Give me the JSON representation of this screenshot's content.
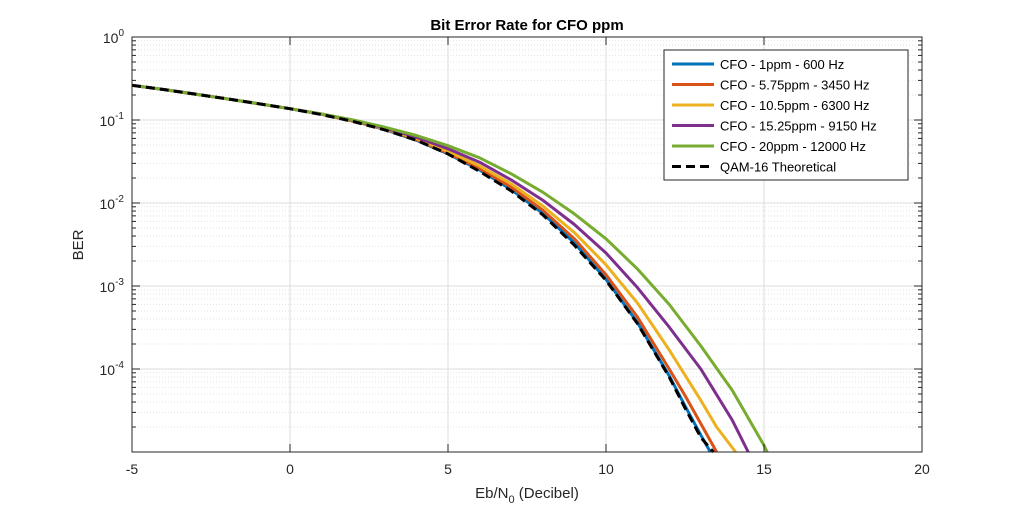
{
  "chart_data": {
    "type": "line",
    "title": "Bit Error Rate for CFO ppm",
    "xlabel": {
      "main": "Eb/N",
      "sub": "0",
      "suffix": " (Decibel)"
    },
    "ylabel": "BER",
    "xlim": [
      -5,
      20
    ],
    "ylim": [
      1e-05,
      1
    ],
    "yscale": "log",
    "grid": true,
    "legend_position": "top-right",
    "x_ticks": [
      -5,
      0,
      5,
      10,
      15,
      20
    ],
    "x_tick_labels": [
      "-5",
      "0",
      "5",
      "10",
      "15",
      "20"
    ],
    "y_ticks": [
      {
        "base": "10",
        "exp": "0",
        "value": 1
      },
      {
        "base": "10",
        "exp": "-1",
        "value": 0.1
      },
      {
        "base": "10",
        "exp": "-2",
        "value": 0.01
      },
      {
        "base": "10",
        "exp": "-3",
        "value": 0.001
      },
      {
        "base": "10",
        "exp": "-4",
        "value": 0.0001
      }
    ],
    "series": [
      {
        "name": "CFO - 1ppm - 600 Hz",
        "color": "#0072BD",
        "dash": "solid",
        "x": [
          -5,
          -4,
          -3,
          -2,
          -1,
          0,
          1,
          2,
          3,
          4,
          5,
          6,
          7,
          8,
          9,
          10,
          11,
          12,
          12.5,
          13,
          13.3
        ],
        "y": [
          0.262,
          0.233,
          0.205,
          0.18,
          0.157,
          0.137,
          0.117,
          0.097,
          0.077,
          0.057,
          0.039,
          0.025,
          0.0145,
          0.0075,
          0.0033,
          0.0012,
          0.00036,
          8.3e-05,
          3.6e-05,
          1.6e-05,
          1e-05
        ]
      },
      {
        "name": "CFO - 5.75ppm - 3450 Hz",
        "color": "#D95319",
        "dash": "solid",
        "x": [
          -5,
          -4,
          -3,
          -2,
          -1,
          0,
          1,
          2,
          3,
          4,
          5,
          6,
          7,
          8,
          9,
          10,
          11,
          12,
          12.5,
          13,
          13.5
        ],
        "y": [
          0.262,
          0.233,
          0.205,
          0.18,
          0.157,
          0.137,
          0.117,
          0.097,
          0.078,
          0.058,
          0.04,
          0.026,
          0.0155,
          0.0082,
          0.0037,
          0.00137,
          0.00042,
          0.0001,
          4.8e-05,
          2.2e-05,
          1e-05
        ]
      },
      {
        "name": "CFO - 10.5ppm - 6300 Hz",
        "color": "#EDB120",
        "dash": "solid",
        "x": [
          -5,
          -4,
          -3,
          -2,
          -1,
          0,
          1,
          2,
          3,
          4,
          5,
          6,
          7,
          8,
          9,
          10,
          11,
          12,
          13,
          13.5,
          14.1
        ],
        "y": [
          0.262,
          0.233,
          0.205,
          0.18,
          0.157,
          0.137,
          0.117,
          0.098,
          0.079,
          0.06,
          0.042,
          0.028,
          0.017,
          0.0092,
          0.0044,
          0.0018,
          0.00062,
          0.00017,
          4.2e-05,
          2e-05,
          1e-05
        ]
      },
      {
        "name": "CFO - 15.25ppm - 9150 Hz",
        "color": "#7E2F8E",
        "dash": "solid",
        "x": [
          -5,
          -4,
          -3,
          -2,
          -1,
          0,
          1,
          2,
          3,
          4,
          5,
          6,
          7,
          8,
          9,
          10,
          11,
          12,
          13,
          14,
          14.5
        ],
        "y": [
          0.262,
          0.233,
          0.205,
          0.18,
          0.157,
          0.137,
          0.118,
          0.099,
          0.08,
          0.062,
          0.045,
          0.031,
          0.019,
          0.0108,
          0.0055,
          0.0025,
          0.00095,
          0.00032,
          0.0001,
          2.4e-05,
          1e-05
        ]
      },
      {
        "name": "CFO - 20ppm - 12000 Hz",
        "color": "#77AC30",
        "dash": "solid",
        "x": [
          -5,
          -4,
          -3,
          -2,
          -1,
          0,
          1,
          2,
          3,
          4,
          5,
          6,
          7,
          8,
          9,
          10,
          11,
          12,
          13,
          14,
          15,
          15.1
        ],
        "y": [
          0.262,
          0.233,
          0.205,
          0.18,
          0.157,
          0.137,
          0.118,
          0.1,
          0.082,
          0.065,
          0.049,
          0.035,
          0.0225,
          0.0135,
          0.0074,
          0.0037,
          0.0016,
          0.0006,
          0.00019,
          5.5e-05,
          1.2e-05,
          1e-05
        ]
      },
      {
        "name": "QAM-16 Theoretical",
        "color": "#000000",
        "dash": "dashed",
        "x": [
          -5,
          -4,
          -3,
          -2,
          -1,
          0,
          1,
          2,
          3,
          4,
          5,
          6,
          7,
          8,
          9,
          10,
          11,
          12,
          12.5,
          13,
          13.4
        ],
        "y": [
          0.262,
          0.233,
          0.205,
          0.18,
          0.157,
          0.137,
          0.116,
          0.096,
          0.076,
          0.057,
          0.039,
          0.024,
          0.014,
          0.0072,
          0.0031,
          0.00117,
          0.00035,
          8e-05,
          3.4e-05,
          1.5e-05,
          1e-05
        ]
      }
    ]
  }
}
